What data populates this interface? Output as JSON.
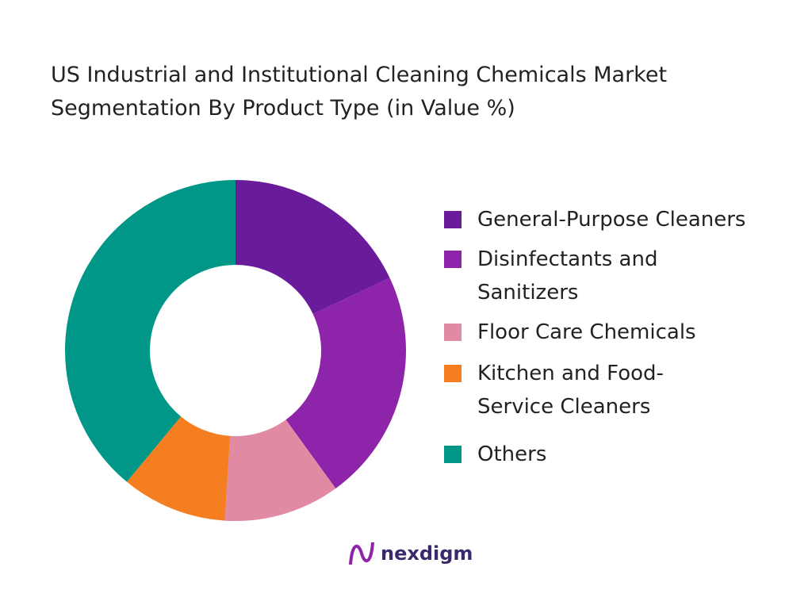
{
  "chart_data": {
    "type": "donut",
    "title": "US Industrial and Institutional Cleaning Chemicals Market Segmentation By Product Type  (in Value %)",
    "categories": [
      "General-Purpose Cleaners",
      "Disinfectants and Sanitizers",
      "Floor Care Chemicals",
      "Kitchen and Food-Service Cleaners",
      "Others"
    ],
    "values": [
      18,
      22,
      11,
      10,
      39
    ],
    "colors": [
      "#6a1b9a",
      "#8e24aa",
      "#e08aa3",
      "#f57f20",
      "#009688"
    ],
    "legend": "right"
  },
  "logo": "nexdigm"
}
